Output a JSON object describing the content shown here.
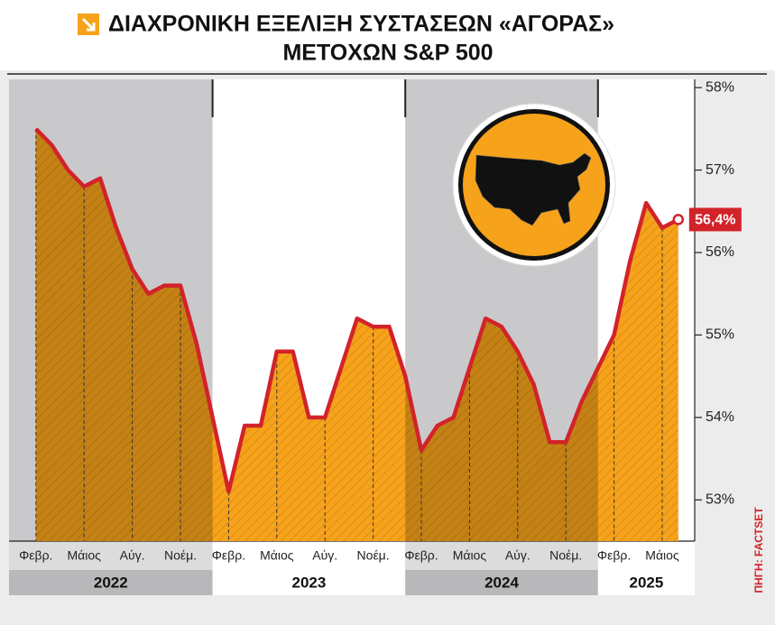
{
  "chart_data": {
    "type": "area",
    "title": "ΔΙΑΧΡΟΝΙΚΗ ΕΞΕΛΙΞΗ ΣΥΣΤΑΣΕΩΝ «ΑΓΟΡΑΣ»",
    "subtitle": "ΜΕΤΟΧΩΝ S&P 500",
    "source": "ΠΗΓΗ: FACTSET",
    "categories": [
      "Φεβρ.",
      null,
      null,
      "Μάιος",
      null,
      null,
      "Αύγ.",
      null,
      null,
      "Νοέμ.",
      null,
      null,
      "Φεβρ.",
      null,
      null,
      "Μάιος",
      null,
      null,
      "Αύγ.",
      null,
      null,
      "Νοέμ.",
      null,
      null,
      "Φεβρ.",
      null,
      null,
      "Μάιος",
      null,
      null,
      "Αύγ.",
      null,
      null,
      "Νοέμ.",
      null,
      null,
      "Φεβρ.",
      null,
      null,
      "Μάιος",
      null
    ],
    "years": [
      "2022",
      "2023",
      "2024",
      "2025"
    ],
    "values": [
      57.5,
      57.3,
      57.0,
      56.8,
      56.9,
      56.3,
      55.8,
      55.5,
      55.6,
      55.6,
      54.9,
      54.0,
      53.1,
      53.9,
      53.9,
      54.8,
      54.8,
      54.0,
      54.0,
      54.6,
      55.2,
      55.1,
      55.1,
      54.5,
      53.6,
      53.9,
      54.0,
      54.6,
      55.2,
      55.1,
      54.8,
      54.4,
      53.7,
      53.7,
      54.2,
      54.6,
      55.0,
      55.9,
      56.6,
      56.3,
      56.4
    ],
    "value_labels": [
      null,
      null,
      null,
      null,
      null,
      null,
      null,
      null,
      null,
      null,
      null,
      null,
      null,
      null,
      null,
      null,
      null,
      null,
      null,
      null,
      null,
      null,
      null,
      null,
      null,
      null,
      null,
      null,
      null,
      null,
      null,
      null,
      null,
      null,
      null,
      null,
      null,
      null,
      null,
      null,
      "56,4%"
    ],
    "color": "#d2232a",
    "fill_color": "#f6a31b",
    "ylim": [
      52.5,
      58.1
    ],
    "yticks": [
      {
        "value": 53,
        "label": "53%"
      },
      {
        "value": 54,
        "label": "54%"
      },
      {
        "value": 55,
        "label": "55%"
      },
      {
        "value": 56,
        "label": "56%"
      },
      {
        "value": 57,
        "label": "57%"
      },
      {
        "value": 58,
        "label": "58%"
      }
    ]
  }
}
